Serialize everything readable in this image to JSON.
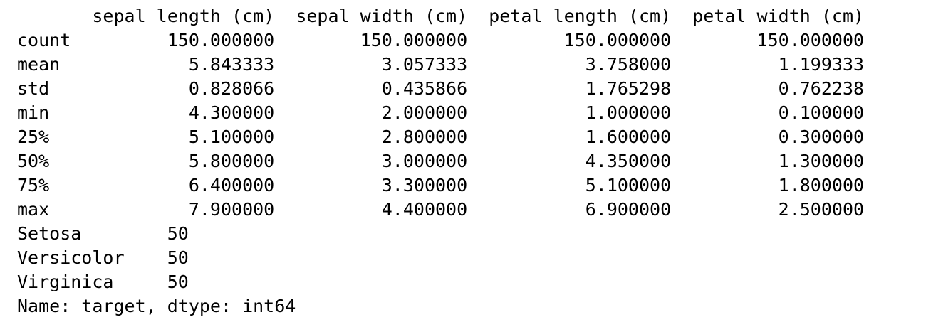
{
  "describe_table": {
    "columns": [
      "sepal length (cm)",
      "sepal width (cm)",
      "petal length (cm)",
      "petal width (cm)"
    ],
    "rows": [
      {
        "label": "count",
        "values": [
          "150.000000",
          "150.000000",
          "150.000000",
          "150.000000"
        ]
      },
      {
        "label": "mean",
        "values": [
          "5.843333",
          "3.057333",
          "3.758000",
          "1.199333"
        ]
      },
      {
        "label": "std",
        "values": [
          "0.828066",
          "0.435866",
          "1.765298",
          "0.762238"
        ]
      },
      {
        "label": "min",
        "values": [
          "4.300000",
          "2.000000",
          "1.000000",
          "0.100000"
        ]
      },
      {
        "label": "25%",
        "values": [
          "5.100000",
          "2.800000",
          "1.600000",
          "0.300000"
        ]
      },
      {
        "label": "50%",
        "values": [
          "5.800000",
          "3.000000",
          "4.350000",
          "1.300000"
        ]
      },
      {
        "label": "75%",
        "values": [
          "6.400000",
          "3.300000",
          "5.100000",
          "1.800000"
        ]
      },
      {
        "label": "max",
        "values": [
          "7.900000",
          "4.400000",
          "6.900000",
          "2.500000"
        ]
      }
    ]
  },
  "value_counts": {
    "rows": [
      {
        "label": "Setosa",
        "value": "50"
      },
      {
        "label": "Versicolor",
        "value": "50"
      },
      {
        "label": "Virginica",
        "value": "50"
      }
    ],
    "footer": "Name: target, dtype: int64"
  },
  "colors": {
    "background": "#ffffff",
    "text": "#000000"
  }
}
